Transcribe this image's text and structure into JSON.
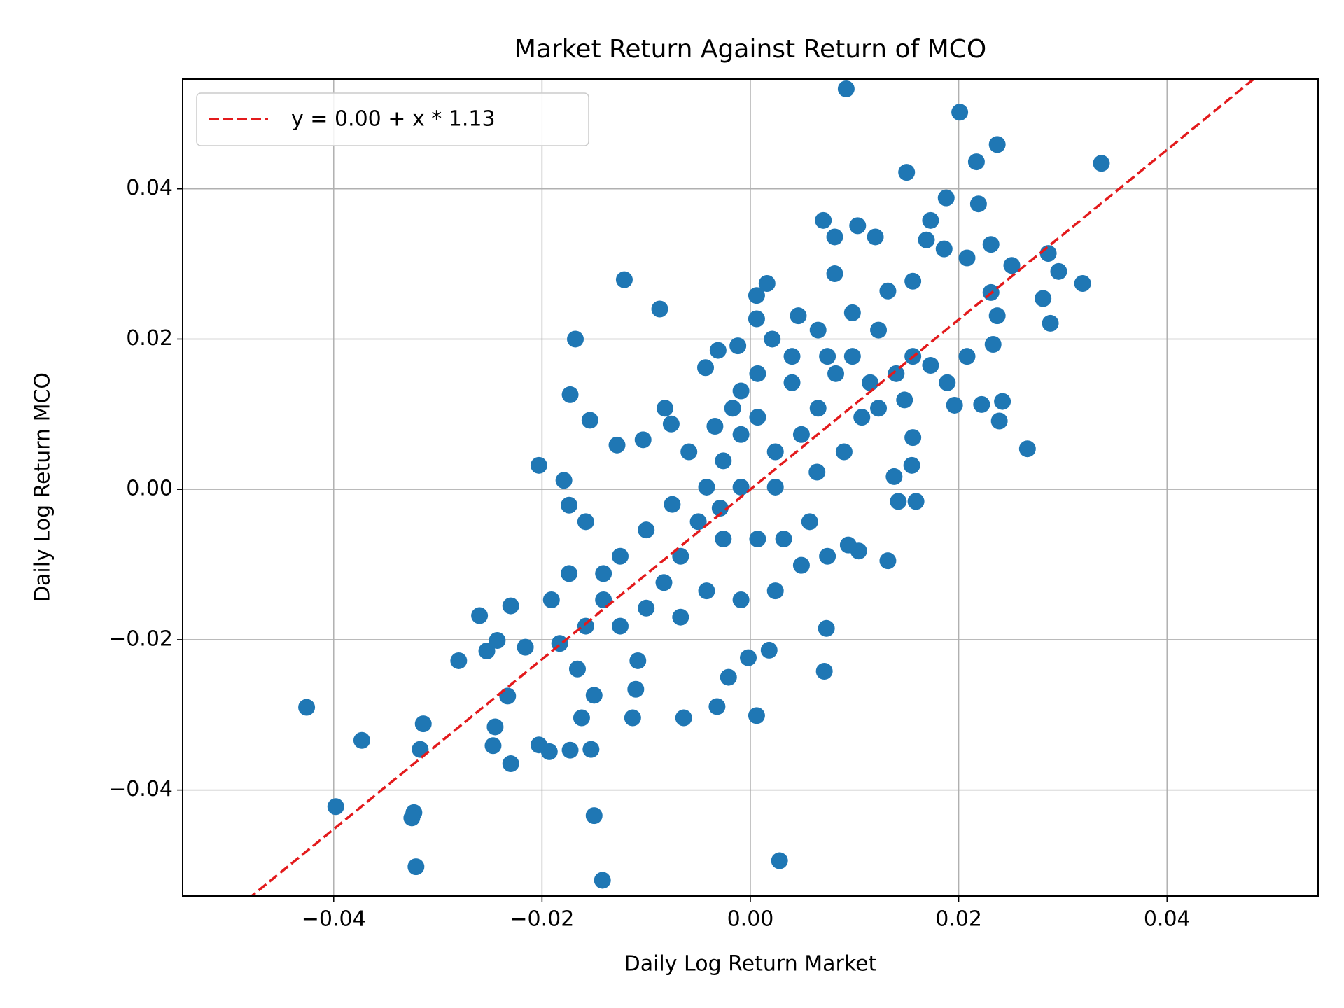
{
  "chart_data": {
    "type": "scatter",
    "title": "Market Return Against Return of MCO",
    "xlabel": "Daily Log Return Market",
    "ylabel": "Daily Log Return MCO",
    "xlim": [
      -0.0545,
      0.0545
    ],
    "ylim": [
      -0.0541,
      0.0546
    ],
    "xticks": [
      {
        "value": -0.04,
        "label": "−0.04"
      },
      {
        "value": -0.02,
        "label": "−0.02"
      },
      {
        "value": 0,
        "label": "0.00"
      },
      {
        "value": 0.02,
        "label": "0.02"
      },
      {
        "value": 0.04,
        "label": "0.04"
      }
    ],
    "yticks": [
      {
        "value": -0.04,
        "label": "−0.04"
      },
      {
        "value": -0.02,
        "label": "−0.02"
      },
      {
        "value": 0,
        "label": "0.00"
      },
      {
        "value": 0.02,
        "label": "0.02"
      },
      {
        "value": 0.04,
        "label": "0.04"
      }
    ],
    "grid": true,
    "legend": "upper left",
    "fit": {
      "name": "y = 0.00 + x * 1.13",
      "color": "#e31a1c",
      "intercept": 0,
      "slope": 1.13
    },
    "series": [
      {
        "color": "#1f77b4",
        "x": [
          -0.0426,
          -0.0373,
          -0.0398,
          -0.0323,
          -0.0325,
          -0.0321,
          -0.0314,
          -0.0317,
          -0.028,
          -0.026,
          -0.0253,
          -0.0245,
          -0.0247,
          -0.0233,
          -0.023,
          -0.023,
          -0.0243,
          -0.0216,
          -0.0203,
          -0.0203,
          -0.0193,
          -0.0179,
          -0.0174,
          -0.0173,
          -0.0168,
          -0.0173,
          -0.0153,
          -0.015,
          -0.0142,
          -0.0162,
          -0.0154,
          -0.0121,
          -0.0087,
          -0.0128,
          -0.0103,
          -0.0082,
          -0.0076,
          -0.011,
          -0.0113,
          -0.0064,
          -0.0032,
          -0.0021,
          -0.0002,
          0.0006,
          0.0018,
          0.0028,
          0.0071,
          0.0073,
          0.0092,
          0.0201,
          0.0237,
          0.0217,
          0.0337,
          0.015,
          0.0188,
          0.0219,
          0.007,
          0.0103,
          0.012,
          0.0081,
          0.0173,
          0.0169,
          0.0231,
          0.0186,
          0.0208,
          0.0251,
          0.0286,
          0.0296,
          0.0319,
          0.0281,
          0.0288,
          0.0266,
          0.0242,
          0.0239,
          0.0222,
          0.0196,
          0.0233,
          0.0237,
          0.0231,
          0.0208,
          0.0142,
          0.0159,
          0.0132,
          0.0104,
          0.0094,
          0.0155,
          0.0156,
          0.0138,
          0.0132,
          0.0156,
          0.0081,
          0.0046,
          0.0016,
          0.0006,
          0.0006,
          0.0021,
          -0.0031,
          -0.0043,
          -0.0012,
          0.0064,
          -0.0029,
          -0.0017,
          -0.0009,
          0.0007,
          0.0024,
          -0.0026,
          -0.0042,
          -0.0009,
          0.0024,
          0.0049,
          0.0065,
          0.0082,
          0.0098,
          0.0115,
          0.0057,
          0.0032,
          0.0007,
          -0.0026,
          -0.005,
          -0.0067,
          -0.0083,
          -0.01,
          -0.0125,
          -0.0141,
          -0.0158,
          -0.0108,
          -0.0067,
          -0.0042,
          -0.0009,
          0.0024,
          0.0049,
          0.0074,
          0.009,
          0.0107,
          0.0123,
          0.0074,
          0.004,
          0.0007,
          -0.0009,
          -0.0034,
          -0.0059,
          -0.0075,
          -0.01,
          -0.0125,
          -0.0141,
          -0.0158,
          -0.0174,
          -0.0191,
          -0.0183,
          -0.0166,
          -0.015,
          0.014,
          0.0156,
          0.0173,
          0.0189,
          0.0148,
          0.0123,
          0.0098,
          0.0065,
          0.004
        ],
        "values": [
          -0.029,
          -0.0334,
          -0.0422,
          -0.043,
          -0.0437,
          -0.0502,
          -0.0312,
          -0.0346,
          -0.0228,
          -0.0168,
          -0.0215,
          -0.0316,
          -0.0341,
          -0.0275,
          -0.0155,
          -0.0365,
          -0.0201,
          -0.021,
          0.0032,
          -0.034,
          -0.0349,
          0.0012,
          -0.0021,
          0.0126,
          0.02,
          -0.0347,
          -0.0346,
          -0.0434,
          -0.052,
          -0.0304,
          0.0092,
          0.0279,
          0.024,
          0.0059,
          0.0066,
          0.0108,
          0.0087,
          -0.0266,
          -0.0304,
          -0.0304,
          -0.0289,
          -0.025,
          -0.0224,
          -0.0301,
          -0.0214,
          -0.0494,
          -0.0242,
          -0.0185,
          0.0533,
          0.0502,
          0.0459,
          0.0436,
          0.0434,
          0.0422,
          0.0388,
          0.038,
          0.0358,
          0.0351,
          0.0336,
          0.0336,
          0.0358,
          0.0332,
          0.0326,
          0.032,
          0.0308,
          0.0298,
          0.0314,
          0.029,
          0.0274,
          0.0254,
          0.0221,
          0.0054,
          0.0117,
          0.0091,
          0.0113,
          0.0112,
          0.0193,
          0.0231,
          0.0262,
          0.0177,
          -0.0016,
          -0.0016,
          -0.0095,
          -0.0082,
          -0.0074,
          0.0032,
          0.0069,
          0.0017,
          0.0264,
          0.0277,
          0.0287,
          0.0231,
          0.0274,
          0.0258,
          0.0227,
          0.02,
          0.0185,
          0.0162,
          0.0191,
          0.0023,
          -0.0025,
          0.0108,
          0.0073,
          0.0096,
          0.005,
          0.0038,
          0.0003,
          0.0003,
          0.0003,
          0.0073,
          0.0108,
          0.0154,
          0.0177,
          0.0142,
          -0.0043,
          -0.0066,
          -0.0066,
          -0.0066,
          -0.0043,
          -0.0089,
          -0.0124,
          -0.0158,
          -0.0182,
          -0.0147,
          -0.0182,
          -0.0228,
          -0.017,
          -0.0135,
          -0.0147,
          -0.0135,
          -0.0101,
          -0.0089,
          0.005,
          0.0096,
          0.0108,
          0.0177,
          0.0142,
          0.0154,
          0.0131,
          0.0084,
          0.005,
          -0.002,
          -0.0054,
          -0.0089,
          -0.0112,
          -0.0043,
          -0.0112,
          -0.0147,
          -0.0205,
          -0.0239,
          -0.0274,
          0.0154,
          0.0177,
          0.0165,
          0.0142,
          0.0119,
          0.0212,
          0.0235,
          0.0212,
          0.0177
        ]
      }
    ]
  }
}
